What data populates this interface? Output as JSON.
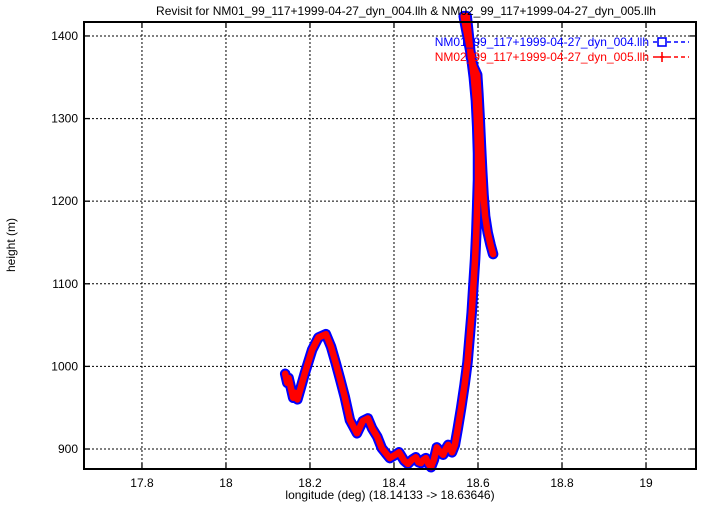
{
  "title": "Revisit for NM01_99_117+1999-04-27_dyn_004.llh & NM02_99_117+1999-04-27_dyn_005.llh",
  "colors": {
    "series1": "#0000ff",
    "series2": "#ff0000",
    "grid": "#000000",
    "border": "#000000",
    "background": "#ffffff",
    "text": "#000000"
  },
  "legend": {
    "position": "top-right-inside",
    "entries": [
      {
        "label": "NM01_99_117+1999-04-27_dyn_004.llh",
        "color": "#0000ff",
        "marker": "open-square",
        "line_style": "dashed"
      },
      {
        "label": "NM02_99_117+1999-04-27_dyn_005.llh",
        "color": "#ff0000",
        "marker": "plus",
        "line_style": "dashed"
      }
    ]
  },
  "chart_data": {
    "type": "line",
    "title": "Revisit for NM01_99_117+1999-04-27_dyn_004.llh & NM02_99_117+1999-04-27_dyn_005.llh",
    "xlabel": "longitude (deg) (18.14133 -> 18.63646)",
    "ylabel": "height (m)",
    "x_range": [
      17.662,
      19.119
    ],
    "y_range": [
      875.8,
      1416.9
    ],
    "x_ticks": [
      17.8,
      18,
      18.2,
      18.4,
      18.6,
      18.8,
      19
    ],
    "x_tick_labels": [
      "17.8",
      "18",
      "18.2",
      "18.4",
      "18.6",
      "18.8",
      "19"
    ],
    "y_ticks": [
      900,
      1000,
      1100,
      1200,
      1300,
      1400
    ],
    "y_tick_labels": [
      "900",
      "1000",
      "1100",
      "1200",
      "1300",
      "1400"
    ],
    "grid": true,
    "legend_position": "top-right inside",
    "lon_start": 18.14133,
    "lon_end": 18.63646,
    "series": [
      {
        "name": "NM01_99_117+1999-04-27_dyn_004.llh",
        "color": "#0000ff",
        "marker": "open-square",
        "uses": "track"
      },
      {
        "name": "NM02_99_117+1999-04-27_dyn_005.llh",
        "color": "#ff0000",
        "marker": "plus",
        "uses": "track"
      }
    ],
    "note": "Both series plot the same revisit track (height vs longitude); red plus markers overdraw blue square markers.",
    "track": [
      [
        18.141,
        991
      ],
      [
        18.146,
        980
      ],
      [
        18.149,
        986
      ],
      [
        18.155,
        973
      ],
      [
        18.16,
        962
      ],
      [
        18.164,
        968
      ],
      [
        18.17,
        960
      ],
      [
        18.178,
        974
      ],
      [
        18.188,
        992
      ],
      [
        18.205,
        1020
      ],
      [
        18.22,
        1035
      ],
      [
        18.238,
        1039
      ],
      [
        18.25,
        1024
      ],
      [
        18.262,
        1003
      ],
      [
        18.271,
        986
      ],
      [
        18.283,
        963
      ],
      [
        18.295,
        935
      ],
      [
        18.312,
        919
      ],
      [
        18.326,
        934
      ],
      [
        18.338,
        937
      ],
      [
        18.348,
        925
      ],
      [
        18.36,
        915
      ],
      [
        18.371,
        901
      ],
      [
        18.39,
        889
      ],
      [
        18.403,
        893
      ],
      [
        18.412,
        896
      ],
      [
        18.424,
        886
      ],
      [
        18.433,
        882
      ],
      [
        18.443,
        887
      ],
      [
        18.452,
        890
      ],
      [
        18.458,
        884
      ],
      [
        18.464,
        883
      ],
      [
        18.47,
        887
      ],
      [
        18.476,
        889
      ],
      [
        18.482,
        882
      ],
      [
        18.488,
        878
      ],
      [
        18.495,
        887
      ],
      [
        18.502,
        902
      ],
      [
        18.509,
        897
      ],
      [
        18.517,
        893
      ],
      [
        18.523,
        900
      ],
      [
        18.529,
        905
      ],
      [
        18.534,
        900
      ],
      [
        18.538,
        896
      ],
      [
        18.545,
        905
      ],
      [
        18.552,
        925
      ],
      [
        18.56,
        950
      ],
      [
        18.568,
        978
      ],
      [
        18.575,
        1005
      ],
      [
        18.58,
        1035
      ],
      [
        18.585,
        1065
      ],
      [
        18.589,
        1098
      ],
      [
        18.593,
        1130
      ],
      [
        18.596,
        1162
      ],
      [
        18.598,
        1194
      ],
      [
        18.6,
        1226
      ],
      [
        18.6,
        1258
      ],
      [
        18.598,
        1290
      ],
      [
        18.595,
        1322
      ],
      [
        18.59,
        1350
      ],
      [
        18.583,
        1378
      ],
      [
        18.574,
        1402
      ],
      [
        18.568,
        1418
      ],
      [
        18.566,
        1424
      ],
      [
        18.573,
        1424
      ],
      [
        18.578,
        1400
      ],
      [
        18.583,
        1374
      ],
      [
        18.59,
        1362
      ],
      [
        18.598,
        1353
      ],
      [
        18.601,
        1330
      ],
      [
        18.604,
        1300
      ],
      [
        18.607,
        1268
      ],
      [
        18.61,
        1236
      ],
      [
        18.613,
        1208
      ],
      [
        18.617,
        1182
      ],
      [
        18.623,
        1162
      ],
      [
        18.63,
        1147
      ],
      [
        18.636,
        1136
      ]
    ]
  }
}
